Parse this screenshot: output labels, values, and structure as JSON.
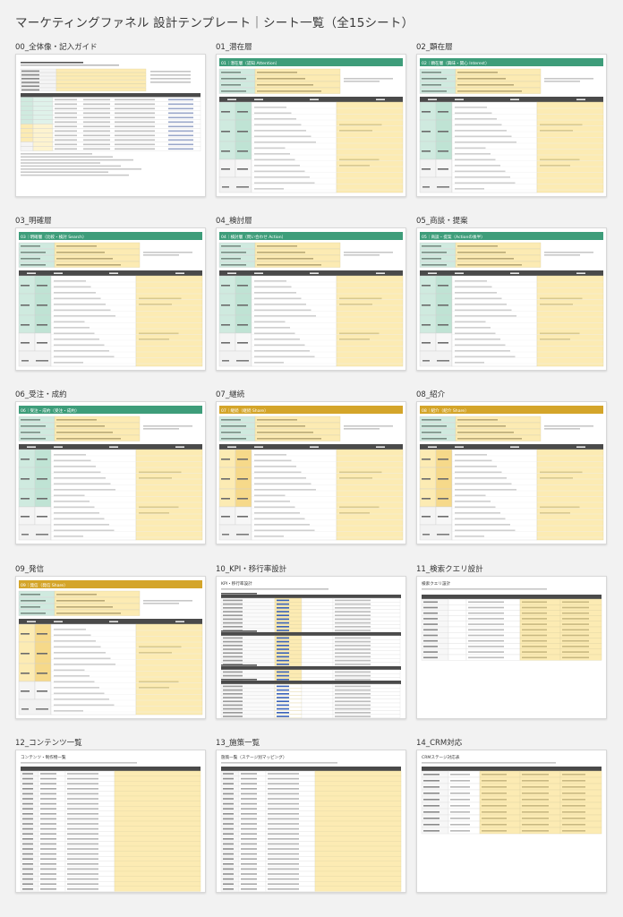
{
  "page": {
    "title": "マーケティングファネル 設計テンプレート｜シート一覧（全15シート）"
  },
  "colors": {
    "green": "#3e9d7a",
    "gold": "#d4a52a",
    "yellow_cell": "#fcebb3",
    "mint_cell": "#cfeadf",
    "dark_header": "#4a4a4a"
  },
  "sheets": [
    {
      "label": "00_全体像・記入ガイド",
      "kind": "guide",
      "header": ""
    },
    {
      "label": "01_潜在層",
      "kind": "stage",
      "header": "01｜潜在層（認知 Attention）",
      "accent": "green"
    },
    {
      "label": "02_顕在層",
      "kind": "stage",
      "header": "02｜顕在層（興味・関心 Interest）",
      "accent": "green"
    },
    {
      "label": "03_明確層",
      "kind": "stage",
      "header": "03｜明確層（比較・検討 Search）",
      "accent": "green"
    },
    {
      "label": "04_検討層",
      "kind": "stage",
      "header": "04｜検討層（問い合わせ Action）",
      "accent": "green"
    },
    {
      "label": "05_商談・提案",
      "kind": "stage",
      "header": "05｜商談・提案（Actionの後半）",
      "accent": "green"
    },
    {
      "label": "06_受注・成約",
      "kind": "stage",
      "header": "06｜受注・成約（受注・成約）",
      "accent": "green"
    },
    {
      "label": "07_継続",
      "kind": "stage",
      "header": "07｜継続（継続 Share）",
      "accent": "gold"
    },
    {
      "label": "08_紹介",
      "kind": "stage",
      "header": "08｜紹介（紹介 Share）",
      "accent": "gold"
    },
    {
      "label": "09_発信",
      "kind": "stage",
      "header": "09｜発信（発信 Share）",
      "accent": "gold"
    },
    {
      "label": "10_KPI・移行率設計",
      "kind": "kpi",
      "header": "KPI・移行率設計"
    },
    {
      "label": "11_検索クエリ設計",
      "kind": "query",
      "header": "検索クエリ設計"
    },
    {
      "label": "12_コンテンツ一覧",
      "kind": "list",
      "header": "コンテンツ・制作物一覧"
    },
    {
      "label": "13_施策一覧",
      "kind": "list",
      "header": "施策一覧（ステージ別マッピング）"
    },
    {
      "label": "14_CRM対応",
      "kind": "crm",
      "header": "CRMステージ対応表"
    }
  ]
}
